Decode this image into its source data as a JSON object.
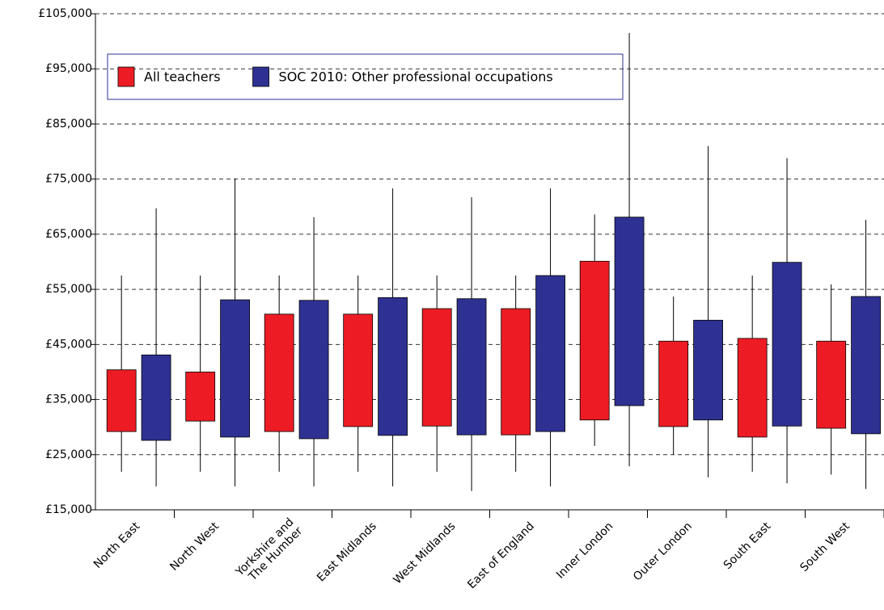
{
  "chart_data": {
    "type": "box",
    "categories": [
      "North East",
      "North West",
      "Yorkshire and\nThe Humber",
      "East Midlands",
      "West Midlands",
      "East of England",
      "Inner London",
      "Outer London",
      "South East",
      "South West"
    ],
    "series": [
      {
        "name": "All teachers",
        "color": "#ed1c24",
        "high": [
          57500,
          57500,
          57500,
          57500,
          57500,
          57500,
          68600,
          53700,
          57500,
          55900
        ],
        "q3": [
          40400,
          40000,
          50500,
          50500,
          51500,
          51500,
          60100,
          45600,
          46100,
          45600
        ],
        "q1": [
          29200,
          31100,
          29200,
          30100,
          30200,
          28600,
          31300,
          30100,
          28200,
          29800
        ],
        "low": [
          21900,
          21900,
          21900,
          21900,
          21900,
          21900,
          26600,
          25000,
          21900,
          21400
        ]
      },
      {
        "name": "SOC 2010: Other professional occupations",
        "color": "#2e3192",
        "high": [
          69700,
          75100,
          68100,
          73300,
          71700,
          73300,
          101500,
          81000,
          78800,
          67600
        ],
        "q3": [
          43100,
          53100,
          53000,
          53500,
          53300,
          57500,
          68100,
          49400,
          59900,
          53700
        ],
        "q1": [
          27600,
          28200,
          27900,
          28500,
          28600,
          29200,
          33900,
          31300,
          30200,
          28800
        ],
        "low": [
          19250,
          19250,
          19250,
          19250,
          18400,
          19250,
          22900,
          20900,
          19800,
          18800
        ]
      }
    ],
    "ylim": [
      15000,
      105000
    ],
    "yticks": [
      {
        "value": 15000,
        "label": "£15,000"
      },
      {
        "value": 25000,
        "label": "£25,000"
      },
      {
        "value": 35000,
        "label": "£35,000"
      },
      {
        "value": 45000,
        "label": "£45,000"
      },
      {
        "value": 55000,
        "label": "£55,000"
      },
      {
        "value": 65000,
        "label": "£65,000"
      },
      {
        "value": 75000,
        "label": "£75,000"
      },
      {
        "value": 85000,
        "label": "£85,000"
      },
      {
        "value": 95000,
        "label": "£95,000"
      },
      {
        "value": 105000,
        "label": "£105,000"
      }
    ],
    "grid": true
  }
}
